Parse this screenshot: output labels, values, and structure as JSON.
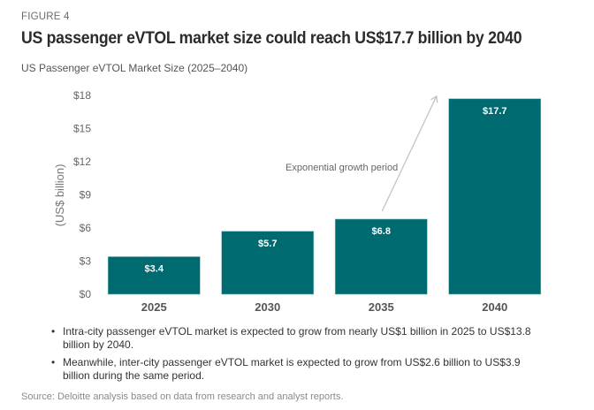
{
  "figure_label": "FIGURE 4",
  "title": "US passenger eVTOL market size could reach US$17.7 billion by 2040",
  "subtitle": "US Passenger eVTOL Market Size (2025–2040)",
  "chart_data": {
    "type": "bar",
    "title": "US Passenger eVTOL Market Size (2025–2040)",
    "xlabel": "",
    "ylabel": "(US$ billion)",
    "categories": [
      "2025",
      "2030",
      "2035",
      "2040"
    ],
    "values": [
      3.4,
      5.7,
      6.8,
      17.7
    ],
    "value_labels": [
      "$3.4",
      "$5.7",
      "$6.8",
      "$17.7"
    ],
    "ylim": [
      0,
      18
    ],
    "yticks": [
      0,
      3,
      6,
      9,
      12,
      15,
      18
    ],
    "ytick_labels": [
      "$0",
      "$3",
      "$6",
      "$9",
      "$12",
      "$15",
      "$18"
    ],
    "grid": false,
    "bar_color": "#006A71",
    "annotations": [
      {
        "text": "Exponential growth period",
        "type": "arrow",
        "from_category": "2035",
        "to_category": "2040"
      }
    ]
  },
  "notes": [
    "Intra-city passenger eVTOL market is expected to grow from nearly US$1 billion in 2025 to US$13.8 billion by 2040.",
    "Meanwhile, inter-city passenger eVTOL market is expected to grow from US$2.6 billion to US$3.9 billion during the same period."
  ],
  "bullet_char": "•",
  "source": "Source: Deloitte analysis based on data from research and analyst reports."
}
